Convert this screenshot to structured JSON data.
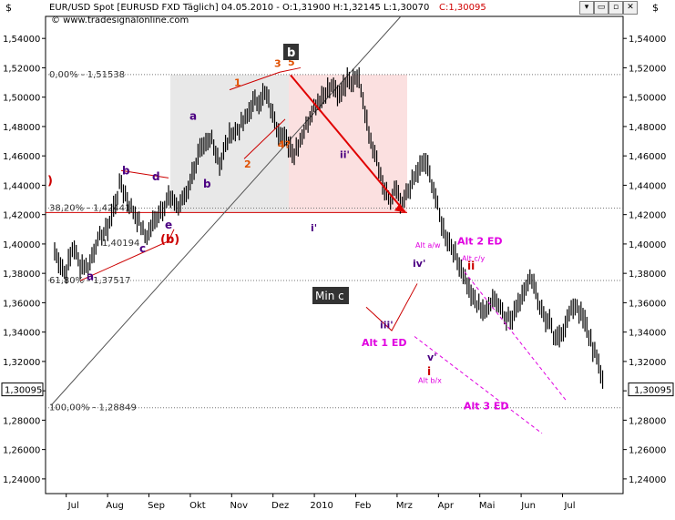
{
  "header": {
    "title": "EUR/USD Spot [EURUSD FXD  Täglich] 04.05.2010 - O:1,31900 H:1,32145 L:1,30070",
    "close_label": "C:1,30095",
    "copyright": "© www.tradesignalonline.com",
    "currency_left": "$",
    "currency_right": "$",
    "window_buttons": [
      "▾",
      "▭",
      "▫",
      "✕"
    ]
  },
  "colors": {
    "price": "#000000",
    "fib_line": "#333333",
    "target_arrow": "#e00000",
    "wave_orange": "#e05000",
    "wave_purple": "#4b0082",
    "wave_magenta": "#e000e0",
    "wave_red": "#cc0000",
    "box_gray": "#e8e8e8",
    "box_pink": "#fbe0e0"
  },
  "chart_data": {
    "type": "line",
    "series_style": "ohlc-bars",
    "ylim": [
      1.23,
      1.555
    ],
    "yticks": [
      1.24,
      1.26,
      1.28,
      1.3,
      1.32,
      1.34,
      1.36,
      1.38,
      1.4,
      1.42,
      1.44,
      1.46,
      1.48,
      1.5,
      1.52,
      1.54
    ],
    "ytick_labels": [
      "1,24000",
      "1,26000",
      "1,28000",
      "1,30000",
      "1,32000",
      "1,34000",
      "1,36000",
      "1,38000",
      "1,40000",
      "1,42000",
      "1,44000",
      "1,46000",
      "1,48000",
      "1,50000",
      "1,52000",
      "1,54000"
    ],
    "xticks": [
      {
        "label": "Jul",
        "t": 0.5
      },
      {
        "label": "Aug",
        "t": 1.5
      },
      {
        "label": "Sep",
        "t": 2.5
      },
      {
        "label": "Okt",
        "t": 3.5
      },
      {
        "label": "Nov",
        "t": 4.5
      },
      {
        "label": "Dez",
        "t": 5.5
      },
      {
        "label": "2010",
        "t": 6.5
      },
      {
        "label": "Feb",
        "t": 7.5
      },
      {
        "label": "Mrz",
        "t": 8.5
      },
      {
        "label": "Apr",
        "t": 9.5
      },
      {
        "label": "Mai",
        "t": 10.5
      },
      {
        "label": "Jun",
        "t": 11.5
      },
      {
        "label": "Jul",
        "t": 12.5
      }
    ],
    "xlim": [
      0,
      13.5
    ],
    "price_path": [
      [
        0.0,
        1.395
      ],
      [
        0.25,
        1.38
      ],
      [
        0.45,
        1.398
      ],
      [
        0.6,
        1.387
      ],
      [
        0.8,
        1.383
      ],
      [
        1.0,
        1.4
      ],
      [
        1.3,
        1.412
      ],
      [
        1.6,
        1.442
      ],
      [
        1.75,
        1.43
      ],
      [
        2.0,
        1.418
      ],
      [
        2.2,
        1.405
      ],
      [
        2.5,
        1.42
      ],
      [
        2.75,
        1.432
      ],
      [
        3.0,
        1.425
      ],
      [
        3.25,
        1.44
      ],
      [
        3.5,
        1.462
      ],
      [
        3.8,
        1.472
      ],
      [
        4.0,
        1.455
      ],
      [
        4.25,
        1.475
      ],
      [
        4.5,
        1.48
      ],
      [
        4.8,
        1.495
      ],
      [
        5.1,
        1.502
      ],
      [
        5.4,
        1.478
      ],
      [
        5.6,
        1.47
      ],
      [
        5.8,
        1.462
      ],
      [
        6.1,
        1.482
      ],
      [
        6.3,
        1.496
      ],
      [
        6.55,
        1.503
      ],
      [
        6.75,
        1.508
      ],
      [
        6.85,
        1.499
      ],
      [
        7.0,
        1.51
      ],
      [
        7.2,
        1.513
      ],
      [
        7.35,
        1.515
      ],
      [
        7.45,
        1.498
      ],
      [
        7.6,
        1.474
      ],
      [
        7.8,
        1.455
      ],
      [
        7.95,
        1.438
      ],
      [
        8.1,
        1.427
      ],
      [
        8.25,
        1.438
      ],
      [
        8.4,
        1.424
      ],
      [
        8.6,
        1.44
      ],
      [
        8.8,
        1.45
      ],
      [
        8.95,
        1.458
      ],
      [
        9.1,
        1.445
      ],
      [
        9.3,
        1.42
      ],
      [
        9.45,
        1.405
      ],
      [
        9.6,
        1.398
      ],
      [
        9.8,
        1.385
      ],
      [
        10.0,
        1.371
      ],
      [
        10.2,
        1.358
      ],
      [
        10.45,
        1.354
      ],
      [
        10.6,
        1.365
      ],
      [
        10.75,
        1.358
      ],
      [
        10.9,
        1.352
      ],
      [
        11.05,
        1.348
      ],
      [
        11.2,
        1.36
      ],
      [
        11.4,
        1.372
      ],
      [
        11.55,
        1.378
      ],
      [
        11.7,
        1.36
      ],
      [
        11.85,
        1.35
      ],
      [
        12.0,
        1.345
      ],
      [
        12.1,
        1.332
      ],
      [
        12.25,
        1.34
      ],
      [
        12.45,
        1.352
      ],
      [
        12.6,
        1.36
      ],
      [
        12.8,
        1.348
      ],
      [
        12.95,
        1.335
      ],
      [
        13.1,
        1.322
      ],
      [
        13.25,
        1.31
      ]
    ],
    "fib_levels": [
      {
        "label": "0,00% - 1,51538",
        "value": 1.51538
      },
      {
        "label": "38,20% - 1,42441",
        "value": 1.42441
      },
      {
        "label": "61,80% - 1,37517",
        "value": 1.37517
      },
      {
        "label": "100,00% - 1,28849",
        "value": 1.28849
      }
    ],
    "partial_fib_label": "1,40194",
    "horizontal_levels": [
      1.4214,
      1.4005,
      1.3752
    ],
    "last_price_label": "1,30095",
    "wave_labels": {
      "orange": [
        "1",
        "2",
        "3",
        "4?",
        "5",
        "(c)"
      ],
      "purple": [
        "a",
        "b",
        "c",
        "d",
        "e",
        "a",
        "b",
        "i'",
        "ii'",
        "iii'",
        "iv'",
        "v'"
      ],
      "red": [
        "(b)",
        ")",
        "ii",
        "i"
      ],
      "magenta": [
        "Alt 1 ED",
        "Alt 2 ED",
        "Alt 3 ED",
        "Alt a/w",
        "Alt c/y",
        "Alt b/x"
      ],
      "boxes": [
        "b",
        "Min c"
      ]
    }
  }
}
